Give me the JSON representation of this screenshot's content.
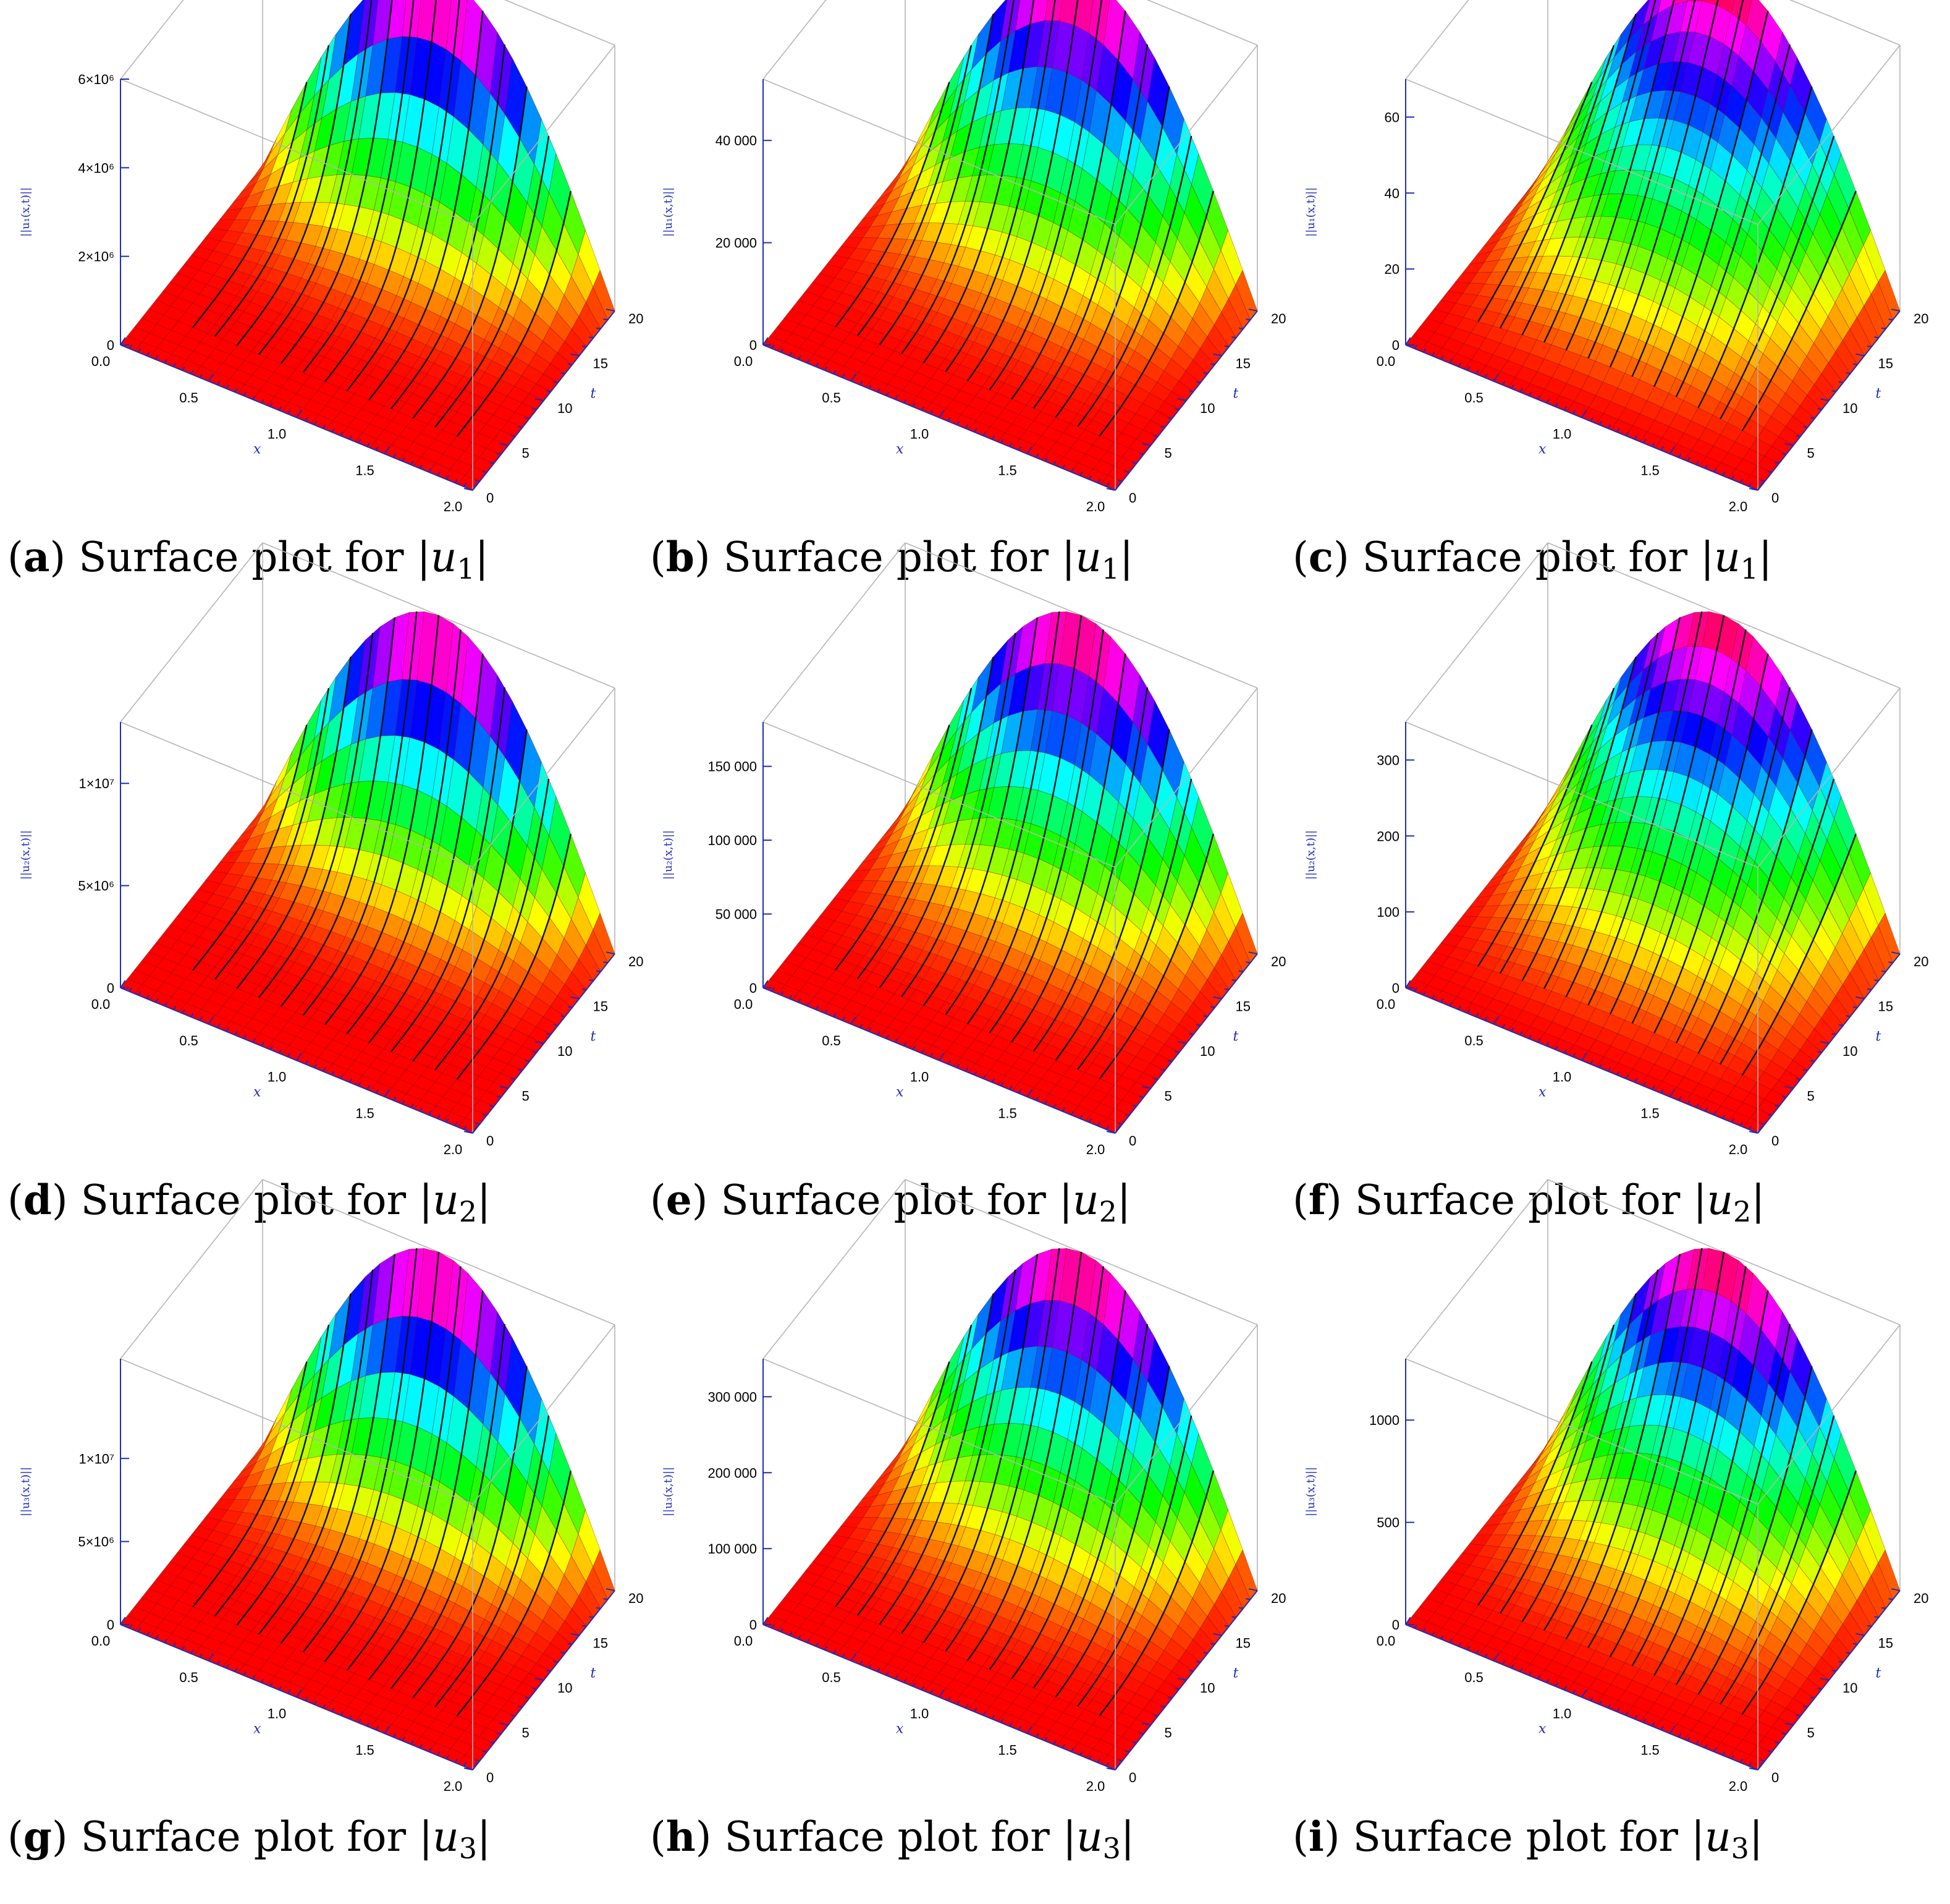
{
  "colors": {
    "surface_base": "#ff1a1a",
    "box_edge": "#b5b5b5",
    "axis_blue": "#1f2db8",
    "mesh_line": "#7a0000",
    "ridge_line": "#111111"
  },
  "chart_data": [
    {
      "type": "surface3d",
      "caption": {
        "letter": "a",
        "text": "Surface plot for",
        "var": "u",
        "sub": "1"
      },
      "zlabel": "||u₁(x,t)||",
      "xlabel": "x",
      "ylabel": "t",
      "x_ticks": [
        "0.0",
        "0.5",
        "1.0",
        "1.5",
        "2.0"
      ],
      "t_ticks": [
        "0",
        "5",
        "10",
        "15",
        "20"
      ],
      "z_ticks": [
        "0",
        "2×10⁶",
        "4×10⁶",
        "6×10⁶"
      ],
      "xlim": [
        0,
        2
      ],
      "tlim": [
        0,
        20
      ],
      "zlim": [
        0,
        6000000
      ],
      "surface": {
        "peak": 6000000,
        "profile_exp": 5.0,
        "ridge": "sin(pi*x/2)"
      }
    },
    {
      "type": "surface3d",
      "caption": {
        "letter": "b",
        "text": "Surface plot for",
        "var": "u",
        "sub": "1"
      },
      "zlabel": "||u₁(x,t)||",
      "xlabel": "x",
      "ylabel": "t",
      "x_ticks": [
        "0.0",
        "0.5",
        "1.0",
        "1.5",
        "2.0"
      ],
      "t_ticks": [
        "0",
        "5",
        "10",
        "15",
        "20"
      ],
      "z_ticks": [
        "0",
        "20 000",
        "40 000"
      ],
      "xlim": [
        0,
        2
      ],
      "tlim": [
        0,
        20
      ],
      "zlim": [
        0,
        52000
      ],
      "surface": {
        "peak": 52000,
        "profile_exp": 3.5,
        "ridge": "sin(pi*x/2)"
      }
    },
    {
      "type": "surface3d",
      "caption": {
        "letter": "c",
        "text": "Surface plot for",
        "var": "u",
        "sub": "1"
      },
      "zlabel": "||u₁(x,t)||",
      "xlabel": "x",
      "ylabel": "t",
      "x_ticks": [
        "0.0",
        "0.5",
        "1.0",
        "1.5",
        "2.0"
      ],
      "t_ticks": [
        "0",
        "5",
        "10",
        "15",
        "20"
      ],
      "z_ticks": [
        "0",
        "20",
        "40",
        "60"
      ],
      "xlim": [
        0,
        2
      ],
      "tlim": [
        0,
        20
      ],
      "zlim": [
        0,
        70
      ],
      "surface": {
        "peak": 70,
        "profile_exp": 1.8,
        "ridge": "sin(pi*x/2)"
      }
    },
    {
      "type": "surface3d",
      "caption": {
        "letter": "d",
        "text": "Surface plot for",
        "var": "u",
        "sub": "2"
      },
      "zlabel": "||u₂(x,t)||",
      "xlabel": "x",
      "ylabel": "t",
      "x_ticks": [
        "0.0",
        "0.5",
        "1.0",
        "1.5",
        "2.0"
      ],
      "t_ticks": [
        "0",
        "5",
        "10",
        "15",
        "20"
      ],
      "z_ticks": [
        "0",
        "5×10⁶",
        "1×10⁷"
      ],
      "xlim": [
        0,
        2
      ],
      "tlim": [
        0,
        20
      ],
      "zlim": [
        0,
        13000000
      ],
      "surface": {
        "peak": 13000000,
        "profile_exp": 5.0,
        "ridge": "sin(pi*x/2)"
      }
    },
    {
      "type": "surface3d",
      "caption": {
        "letter": "e",
        "text": "Surface plot for",
        "var": "u",
        "sub": "2"
      },
      "zlabel": "||u₂(x,t)||",
      "xlabel": "x",
      "ylabel": "t",
      "x_ticks": [
        "0.0",
        "0.5",
        "1.0",
        "1.5",
        "2.0"
      ],
      "t_ticks": [
        "0",
        "5",
        "10",
        "15",
        "20"
      ],
      "z_ticks": [
        "0",
        "50 000",
        "100 000",
        "150 000"
      ],
      "xlim": [
        0,
        2
      ],
      "tlim": [
        0,
        20
      ],
      "zlim": [
        0,
        180000
      ],
      "surface": {
        "peak": 180000,
        "profile_exp": 3.5,
        "ridge": "sin(pi*x/2)"
      }
    },
    {
      "type": "surface3d",
      "caption": {
        "letter": "f",
        "text": "Surface plot for",
        "var": "u",
        "sub": "2"
      },
      "zlabel": "||u₂(x,t)||",
      "xlabel": "x",
      "ylabel": "t",
      "x_ticks": [
        "0.0",
        "0.5",
        "1.0",
        "1.5",
        "2.0"
      ],
      "t_ticks": [
        "0",
        "5",
        "10",
        "15",
        "20"
      ],
      "z_ticks": [
        "0",
        "100",
        "200",
        "300"
      ],
      "xlim": [
        0,
        2
      ],
      "tlim": [
        0,
        20
      ],
      "zlim": [
        0,
        350
      ],
      "surface": {
        "peak": 350,
        "profile_exp": 2.0,
        "ridge": "sin(pi*x/2)"
      }
    },
    {
      "type": "surface3d",
      "caption": {
        "letter": "g",
        "text": "Surface plot for",
        "var": "u",
        "sub": "3"
      },
      "zlabel": "||u₃(x,t)||",
      "xlabel": "x",
      "ylabel": "t",
      "x_ticks": [
        "0.0",
        "0.5",
        "1.0",
        "1.5",
        "2.0"
      ],
      "t_ticks": [
        "0",
        "5",
        "10",
        "15",
        "20"
      ],
      "z_ticks": [
        "0",
        "5×10⁶",
        "1×10⁷"
      ],
      "xlim": [
        0,
        2
      ],
      "tlim": [
        0,
        20
      ],
      "zlim": [
        0,
        16000000
      ],
      "surface": {
        "peak": 16000000,
        "profile_exp": 5.0,
        "ridge": "sin(pi*x/2)"
      }
    },
    {
      "type": "surface3d",
      "caption": {
        "letter": "h",
        "text": "Surface plot for",
        "var": "u",
        "sub": "3"
      },
      "zlabel": "||u₃(x,t)||",
      "xlabel": "x",
      "ylabel": "t",
      "x_ticks": [
        "0.0",
        "0.5",
        "1.0",
        "1.5",
        "2.0"
      ],
      "t_ticks": [
        "0",
        "5",
        "10",
        "15",
        "20"
      ],
      "z_ticks": [
        "0",
        "100 000",
        "200 000",
        "300 000"
      ],
      "xlim": [
        0,
        2
      ],
      "tlim": [
        0,
        20
      ],
      "zlim": [
        0,
        350000
      ],
      "surface": {
        "peak": 350000,
        "profile_exp": 3.5,
        "ridge": "sin(pi*x/2)"
      }
    },
    {
      "type": "surface3d",
      "caption": {
        "letter": "i",
        "text": "Surface plot for",
        "var": "u",
        "sub": "3"
      },
      "zlabel": "||u₃(x,t)||",
      "xlabel": "x",
      "ylabel": "t",
      "x_ticks": [
        "0.0",
        "0.5",
        "1.0",
        "1.5",
        "2.0"
      ],
      "t_ticks": [
        "0",
        "5",
        "10",
        "15",
        "20"
      ],
      "z_ticks": [
        "0",
        "500",
        "1000"
      ],
      "xlim": [
        0,
        2
      ],
      "tlim": [
        0,
        20
      ],
      "zlim": [
        0,
        1300
      ],
      "surface": {
        "peak": 1300,
        "profile_exp": 2.5,
        "ridge": "sin(pi*x/2)"
      }
    }
  ]
}
